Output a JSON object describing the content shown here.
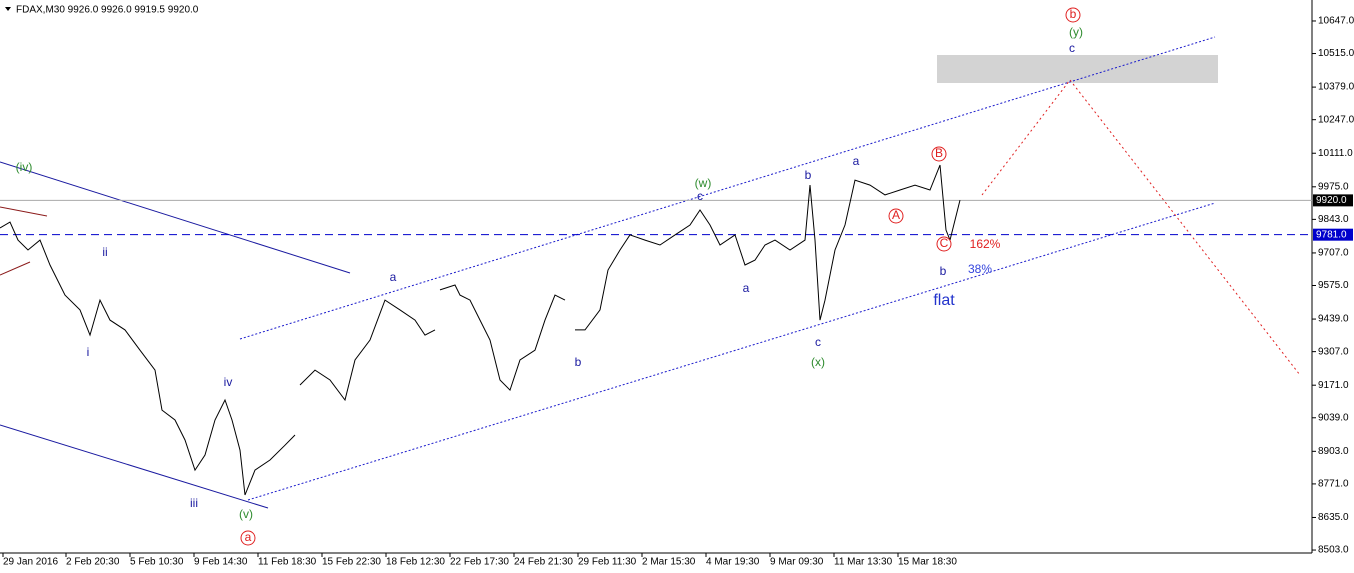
{
  "chart_data": {
    "type": "line",
    "title": "FDAX,M30  9926.0 9926.0 9919.5 9920.0",
    "x": [
      0,
      10,
      18,
      28,
      40,
      50,
      65,
      80,
      90,
      100,
      110,
      125,
      140,
      155,
      162,
      175,
      185,
      195,
      205,
      215,
      225,
      232,
      240,
      245,
      255,
      270,
      285,
      295,
      298,
      300,
      315,
      330,
      345,
      355,
      370,
      385,
      400,
      415,
      425,
      435,
      438,
      440,
      455,
      460,
      470,
      480,
      490,
      500,
      510,
      520,
      535,
      545,
      555,
      565,
      572,
      575,
      585,
      600,
      608,
      620,
      630,
      645,
      660,
      675,
      690,
      700,
      710,
      720,
      735,
      745,
      755,
      765,
      775,
      790,
      805,
      810,
      815,
      820,
      825,
      835,
      845,
      855,
      870,
      885,
      900,
      915,
      930,
      940,
      946,
      950,
      960
    ],
    "series": [
      {
        "name": "FDAX",
        "color": "#000000",
        "values": [
          9808,
          9832,
          9759,
          9719,
          9759,
          9658,
          9536,
          9476,
          9374,
          9516,
          9435,
          9395,
          9313,
          9232,
          9070,
          9030,
          8949,
          8827,
          8888,
          9030,
          9111,
          9030,
          8908,
          8726,
          8827,
          8868,
          8928,
          8969,
          null,
          9172,
          9232,
          9192,
          9111,
          9273,
          9354,
          9516,
          9476,
          9435,
          9374,
          9395,
          null,
          9557,
          9577,
          9536,
          9516,
          9435,
          9354,
          9192,
          9151,
          9273,
          9313,
          9435,
          9536,
          9516,
          null,
          9395,
          9395,
          9476,
          9638,
          9719,
          9780,
          9759,
          9739,
          9780,
          9820,
          9881,
          9820,
          9739,
          9780,
          9658,
          9678,
          9739,
          9759,
          9719,
          9759,
          9982,
          9759,
          9435,
          9516,
          9719,
          9820,
          10002,
          9982,
          9942,
          9962,
          9982,
          9962,
          10063,
          9800,
          9759,
          9921
        ]
      }
    ],
    "xlim": [
      0,
      1312
    ],
    "xticks": [
      {
        "value": 3,
        "label": "29 Jan 2016"
      },
      {
        "value": 66,
        "label": "2 Feb 20:30"
      },
      {
        "value": 130,
        "label": "5 Feb 10:30"
      },
      {
        "value": 194,
        "label": "9 Feb 14:30"
      },
      {
        "value": 258,
        "label": "11 Feb 18:30"
      },
      {
        "value": 322,
        "label": "15 Feb 22:30"
      },
      {
        "value": 386,
        "label": "18 Feb 12:30"
      },
      {
        "value": 450,
        "label": "22 Feb 17:30"
      },
      {
        "value": 514,
        "label": "24 Feb 21:30"
      },
      {
        "value": 578,
        "label": "29 Feb 11:30"
      },
      {
        "value": 642,
        "label": "2 Mar 15:30"
      },
      {
        "value": 706,
        "label": "4 Mar 19:30"
      },
      {
        "value": 770,
        "label": "9 Mar 09:30"
      },
      {
        "value": 834,
        "label": "11 Mar 13:30"
      },
      {
        "value": 898,
        "label": "15 Mar 18:30"
      }
    ],
    "ylim": [
      8491,
      10732
    ],
    "yticks": [
      {
        "value": 10647,
        "label": "10647.0"
      },
      {
        "value": 10515,
        "label": "10515.0"
      },
      {
        "value": 10379,
        "label": "10379.0"
      },
      {
        "value": 10247,
        "label": "10247.0"
      },
      {
        "value": 10111,
        "label": "10111.0"
      },
      {
        "value": 9975,
        "label": "9975.0"
      },
      {
        "value": 9843,
        "label": "9843.0"
      },
      {
        "value": 9707,
        "label": "9707.0"
      },
      {
        "value": 9575,
        "label": "9575.0"
      },
      {
        "value": 9439,
        "label": "9439.0"
      },
      {
        "value": 9307,
        "label": "9307.0"
      },
      {
        "value": 9171,
        "label": "9171.0"
      },
      {
        "value": 9039,
        "label": "9039.0"
      },
      {
        "value": 8903,
        "label": "8903.0"
      },
      {
        "value": 8771,
        "label": "8771.0"
      },
      {
        "value": 8635,
        "label": "8635.0"
      },
      {
        "value": 8503,
        "label": "8503.0"
      }
    ],
    "price_levels": [
      {
        "value": 9920,
        "label": "9920.0",
        "color": "#aaaaaa"
      },
      {
        "value": 9781,
        "label": "9781.0",
        "color": "#0000cc"
      }
    ],
    "annotations": [
      {
        "text": "(iv)",
        "color": "#2e8b2e"
      },
      {
        "text": "ii",
        "color": "#1a1aa0"
      },
      {
        "text": "i",
        "color": "#1a1aa0"
      },
      {
        "text": "iii",
        "color": "#1a1aa0"
      },
      {
        "text": "iv",
        "color": "#1a1aa0"
      },
      {
        "text": "(v)",
        "color": "#2e8b2e"
      },
      {
        "text": "a",
        "color": "#e02020",
        "circled": true
      },
      {
        "text": "a",
        "color": "#1a1aa0"
      },
      {
        "text": "b",
        "color": "#1a1aa0"
      },
      {
        "text": "(w)",
        "color": "#2e8b2e"
      },
      {
        "text": "c",
        "color": "#1a1aa0"
      },
      {
        "text": "a",
        "color": "#1a1aa0"
      },
      {
        "text": "b",
        "color": "#1a1aa0"
      },
      {
        "text": "c",
        "color": "#1a1aa0"
      },
      {
        "text": "(x)",
        "color": "#2e8b2e"
      },
      {
        "text": "a",
        "color": "#1a1aa0"
      },
      {
        "text": "A",
        "color": "#e02020",
        "circled": true
      },
      {
        "text": "B",
        "color": "#e02020",
        "circled": true
      },
      {
        "text": "C",
        "color": "#e02020",
        "circled": true
      },
      {
        "text": "162%",
        "color": "#e02020"
      },
      {
        "text": "b",
        "color": "#1a1aa0"
      },
      {
        "text": "38%",
        "color": "#3344dd"
      },
      {
        "text": "flat",
        "color": "#2233cc"
      },
      {
        "text": "b",
        "color": "#e02020",
        "circled": true
      },
      {
        "text": "(y)",
        "color": "#2e8b2e"
      },
      {
        "text": "c",
        "color": "#1a1aa0"
      }
    ]
  }
}
